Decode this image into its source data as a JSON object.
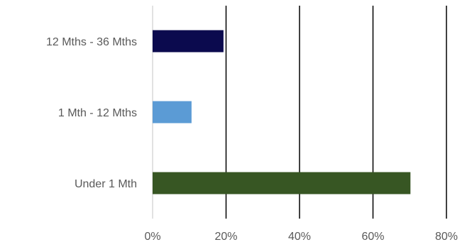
{
  "chart_data": {
    "type": "bar",
    "orientation": "horizontal",
    "categories": [
      "12 Mths - 36 Mths",
      "1 Mth - 12 Mths",
      "Under 1 Mth"
    ],
    "values": [
      19.3,
      10.6,
      70.2
    ],
    "colors": [
      "#0b0a4e",
      "#5b9bd5",
      "#375623"
    ],
    "xlim": [
      0,
      80
    ],
    "xticks": [
      "0%",
      "20%",
      "40%",
      "60%",
      "80%"
    ],
    "grid": true,
    "legend": false
  }
}
